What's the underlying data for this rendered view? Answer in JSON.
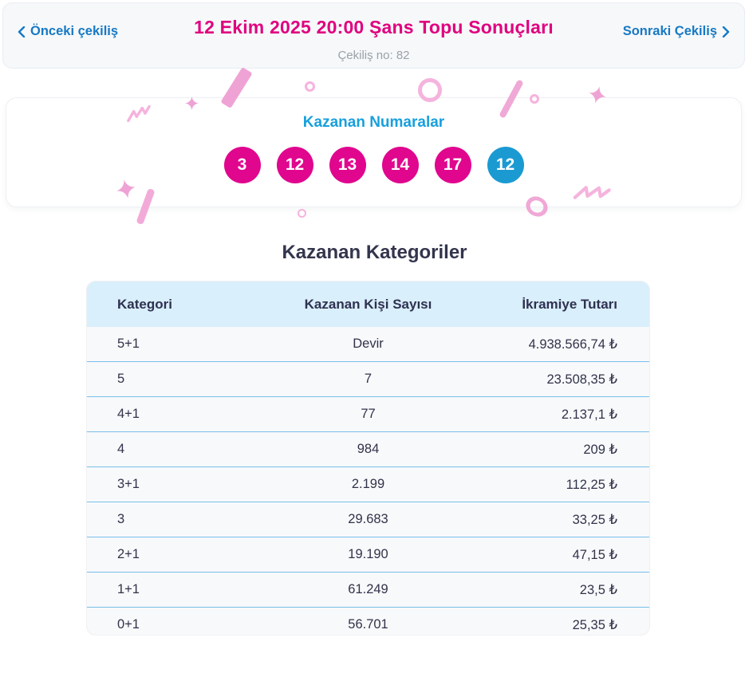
{
  "header": {
    "prev_label": "Önceki çekiliş",
    "next_label": "Sonraki Çekiliş",
    "title": "12 Ekim 2025 20:00 Şans Topu Sonuçları",
    "draw_no": "Çekiliş no: 82"
  },
  "winning_numbers": {
    "title": "Kazanan Numaralar",
    "numbers": [
      "3",
      "12",
      "13",
      "14",
      "17"
    ],
    "bonus_number": "12"
  },
  "categories": {
    "title": "Kazanan Kategoriler",
    "columns": [
      "Kategori",
      "Kazanan Kişi Sayısı",
      "İkramiye Tutarı"
    ],
    "rows": [
      {
        "category": "5+1",
        "winners": "Devir",
        "prize": "4.938.566,74 ₺"
      },
      {
        "category": "5",
        "winners": "7",
        "prize": "23.508,35 ₺"
      },
      {
        "category": "4+1",
        "winners": "77",
        "prize": "2.137,1 ₺"
      },
      {
        "category": "4",
        "winners": "984",
        "prize": "209 ₺"
      },
      {
        "category": "3+1",
        "winners": "2.199",
        "prize": "112,25 ₺"
      },
      {
        "category": "3",
        "winners": "29.683",
        "prize": "33,25 ₺"
      },
      {
        "category": "2+1",
        "winners": "19.190",
        "prize": "47,15 ₺"
      },
      {
        "category": "1+1",
        "winners": "61.249",
        "prize": "23,5 ₺"
      },
      {
        "category": "0+1",
        "winners": "56.701",
        "prize": "25,35 ₺"
      }
    ]
  },
  "colors": {
    "title_pink": "#e0007f",
    "nav_blue": "#1779c4",
    "numbers_cyan": "#18a0dc",
    "ball_pink": "#e0068e",
    "ball_bonus_blue": "#1b9ad2",
    "table_header_bg": "#d9effb",
    "row_separator": "#79bfe9",
    "confetti_pink": "#f5b3dd",
    "confetti_pink_strong": "#efa3d5"
  },
  "icons": {
    "prev": "chevron-left-icon",
    "next": "chevron-right-icon"
  }
}
